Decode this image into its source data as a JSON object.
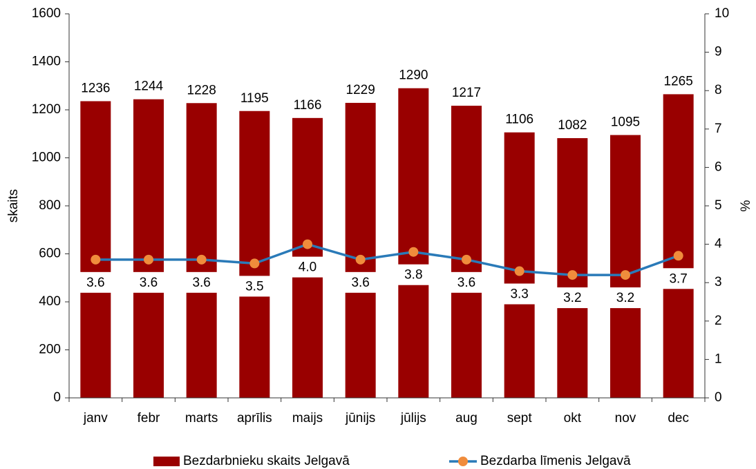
{
  "chart_data": {
    "type": "bar_line",
    "categories": [
      "janv",
      "febr",
      "marts",
      "aprīlis",
      "maijs",
      "jūnijs",
      "jūlijs",
      "aug",
      "sept",
      "okt",
      "nov",
      "dec"
    ],
    "series": [
      {
        "name": "Bezdarbnieku skaits Jelgavā",
        "color": "#990000",
        "type": "bar",
        "values": [
          1236,
          1244,
          1228,
          1195,
          1166,
          1229,
          1290,
          1217,
          1106,
          1082,
          1095,
          1265
        ]
      },
      {
        "name": "Bezdarba līmenis Jelgavā",
        "color": "#2a7ab8",
        "marker_color": "#f08c3c",
        "type": "line",
        "axis": "y2",
        "values": [
          3.6,
          3.6,
          3.6,
          3.5,
          4.0,
          3.6,
          3.8,
          3.6,
          3.3,
          3.2,
          3.2,
          3.7
        ],
        "value_labels": [
          "3.6",
          "3.6",
          "3.6",
          "3.5",
          "4.0",
          "3.6",
          "3.8",
          "3.6",
          "3.3",
          "3.2",
          "3.2",
          "3.7"
        ]
      }
    ],
    "ylabel": "skaits",
    "y2label": "%",
    "ylim": [
      0,
      1600
    ],
    "yticks": [
      0,
      200,
      400,
      600,
      800,
      1000,
      1200,
      1400,
      1600
    ],
    "y2lim": [
      0,
      10
    ],
    "y2ticks": [
      0,
      1,
      2,
      3,
      4,
      5,
      6,
      7,
      8,
      9,
      10
    ],
    "grid": false,
    "legend": "bottom"
  }
}
